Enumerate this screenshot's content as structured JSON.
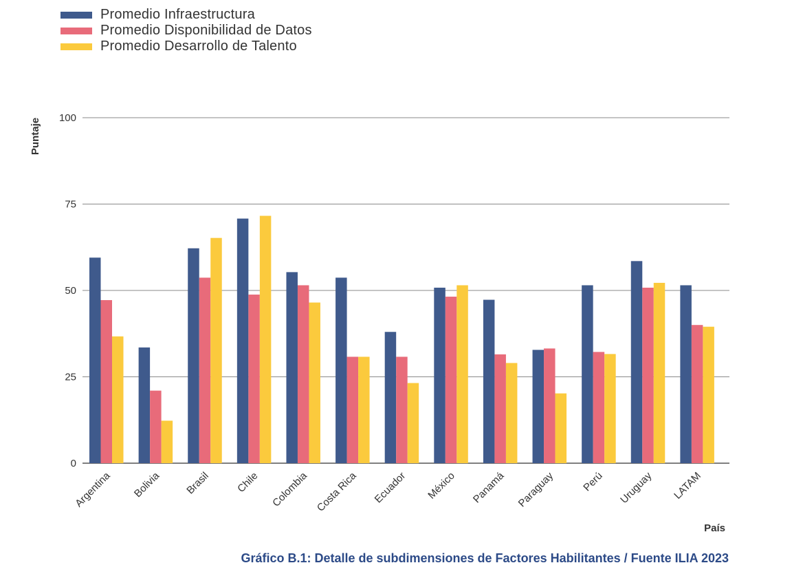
{
  "chart_data": {
    "type": "bar",
    "ylabel": "Puntaje",
    "xlabel": "País",
    "ylim": [
      0,
      100
    ],
    "yticks": [
      0,
      25,
      50,
      75,
      100
    ],
    "grid": true,
    "legend_position": "top-left",
    "categories": [
      "Argentina",
      "Bolivia",
      "Brasil",
      "Chile",
      "Colombia",
      "Costa Rica",
      "Ecuador",
      "México",
      "Panamá",
      "Paraguay",
      "Perú",
      "Uruguay",
      "LATAM"
    ],
    "series": [
      {
        "name": "Promedio Infraestructura",
        "color": "#3f5a8c",
        "values": [
          59.5,
          33.5,
          62.2,
          70.8,
          55.3,
          53.7,
          38.0,
          50.8,
          47.3,
          32.8,
          51.5,
          58.5,
          51.5
        ]
      },
      {
        "name": "Promedio Disponibilidad de Datos",
        "color": "#e86b7a",
        "values": [
          47.2,
          21.0,
          53.7,
          48.8,
          51.5,
          30.8,
          30.8,
          48.2,
          31.5,
          33.2,
          32.2,
          50.8,
          40.0
        ]
      },
      {
        "name": "Promedio Desarrollo de Talento",
        "color": "#fbca3d",
        "values": [
          36.7,
          12.3,
          65.2,
          71.6,
          46.5,
          30.8,
          23.2,
          51.5,
          29.0,
          20.2,
          31.6,
          52.2,
          39.5
        ]
      }
    ]
  },
  "caption": "Gráfico B.1: Detalle de subdimensiones de Factores Habilitantes / Fuente ILIA 2023"
}
